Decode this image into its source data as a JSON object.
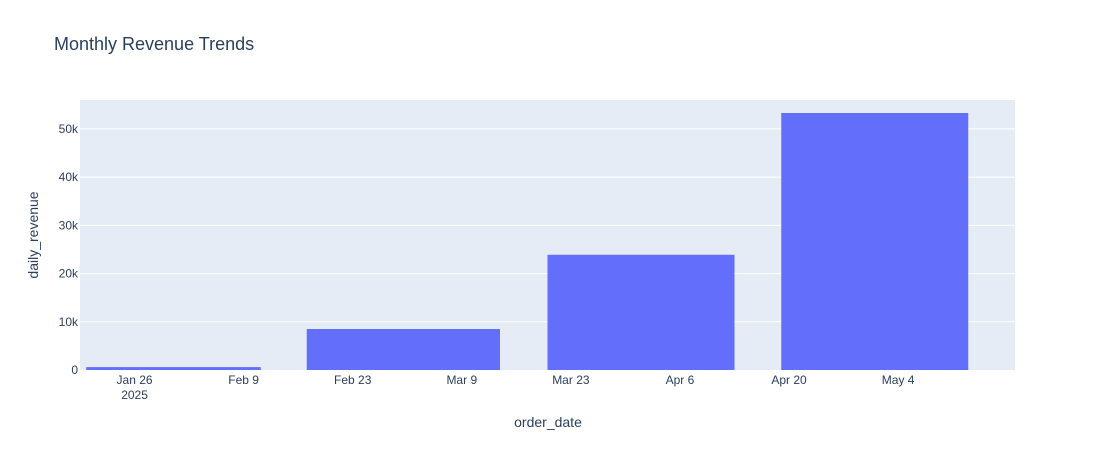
{
  "colors": {
    "plot_background": "#e5ecf6",
    "grid": "#ffffff",
    "bar": "#636efa",
    "text": "#2a3f5f"
  },
  "chart_data": {
    "type": "bar",
    "title": "Monthly Revenue Trends",
    "xlabel": "order_date",
    "ylabel": "daily_revenue",
    "x_axis_type": "date",
    "xlim": [
      "2025-01-19",
      "2025-05-19"
    ],
    "ylim": [
      0,
      56000
    ],
    "grid": true,
    "legend": "none",
    "categories": [
      "2025-01-31",
      "2025-02-28",
      "2025-03-31",
      "2025-04-30"
    ],
    "bar_periods": [
      [
        "2025-01-17",
        "2025-02-14"
      ],
      [
        "2025-02-14",
        "2025-03-17"
      ],
      [
        "2025-03-17",
        "2025-04-16"
      ],
      [
        "2025-04-16",
        "2025-05-16"
      ]
    ],
    "values": [
      600,
      8500,
      23900,
      53300
    ],
    "x_ticks": [
      {
        "date": "2025-01-26",
        "label": "Jan 26",
        "sublabel": "2025"
      },
      {
        "date": "2025-02-09",
        "label": "Feb 9",
        "sublabel": ""
      },
      {
        "date": "2025-02-23",
        "label": "Feb 23",
        "sublabel": ""
      },
      {
        "date": "2025-03-09",
        "label": "Mar 9",
        "sublabel": ""
      },
      {
        "date": "2025-03-23",
        "label": "Mar 23",
        "sublabel": ""
      },
      {
        "date": "2025-04-06",
        "label": "Apr 6",
        "sublabel": ""
      },
      {
        "date": "2025-04-20",
        "label": "Apr 20",
        "sublabel": ""
      },
      {
        "date": "2025-05-04",
        "label": "May 4",
        "sublabel": ""
      }
    ],
    "y_ticks": [
      {
        "value": 0,
        "label": "0"
      },
      {
        "value": 10000,
        "label": "10k"
      },
      {
        "value": 20000,
        "label": "20k"
      },
      {
        "value": 30000,
        "label": "30k"
      },
      {
        "value": 40000,
        "label": "40k"
      },
      {
        "value": 50000,
        "label": "50k"
      }
    ]
  }
}
